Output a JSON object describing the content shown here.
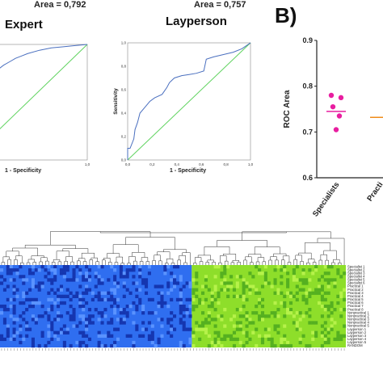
{
  "panel_b_label": "B)",
  "chart_data": [
    {
      "type": "line",
      "title": "Expert",
      "annotation": "Area = 0,792",
      "xlabel": "1 - Specificity",
      "ylabel": "",
      "xlim": [
        0,
        1
      ],
      "ylim": [
        0,
        1
      ],
      "x_ticks": [
        "1,0"
      ],
      "series": [
        {
          "x": [
            0.0,
            0.02,
            0.05,
            0.1,
            0.18,
            0.25,
            0.3,
            0.35,
            0.4,
            0.45,
            0.5,
            0.6,
            0.7,
            0.8,
            0.9,
            1.0
          ],
          "y": [
            0.0,
            0.6,
            0.65,
            0.7,
            0.75,
            0.78,
            0.82,
            0.85,
            0.88,
            0.9,
            0.92,
            0.95,
            0.97,
            0.98,
            0.99,
            1.0
          ]
        },
        {
          "x": [
            0,
            1
          ],
          "y": [
            0,
            1
          ]
        }
      ]
    },
    {
      "type": "line",
      "title": "Layperson",
      "annotation": "Area = 0,757",
      "xlabel": "1 - Specificity",
      "ylabel": "Sensitivity",
      "xlim": [
        0,
        1
      ],
      "ylim": [
        0,
        1
      ],
      "x_ticks": [
        "0,0",
        "0,2",
        "0,4",
        "0,6",
        "0,8",
        "1,0"
      ],
      "y_ticks": [
        "0,0",
        "0,2",
        "0,4",
        "0,6",
        "0,8",
        "1,0"
      ],
      "series": [
        {
          "x": [
            0.0,
            0.0,
            0.02,
            0.05,
            0.06,
            0.08,
            0.1,
            0.14,
            0.18,
            0.22,
            0.28,
            0.32,
            0.34,
            0.38,
            0.44,
            0.5,
            0.56,
            0.62,
            0.64,
            0.7,
            0.78,
            0.86,
            0.93,
            1.0
          ],
          "y": [
            0.0,
            0.1,
            0.1,
            0.18,
            0.26,
            0.32,
            0.4,
            0.45,
            0.5,
            0.53,
            0.56,
            0.62,
            0.66,
            0.7,
            0.72,
            0.73,
            0.74,
            0.76,
            0.86,
            0.88,
            0.9,
            0.92,
            0.95,
            1.0
          ]
        },
        {
          "x": [
            0,
            1
          ],
          "y": [
            0,
            1
          ]
        }
      ]
    },
    {
      "type": "scatter",
      "ylabel": "ROC Area",
      "ylim": [
        0.6,
        0.9
      ],
      "y_ticks": [
        "0.6",
        "0.7",
        "0.8",
        "0.9"
      ],
      "categories": [
        "Specialists",
        "Practi"
      ],
      "series": [
        {
          "name": "Specialists",
          "values": [
            0.78,
            0.775,
            0.755,
            0.735,
            0.705
          ],
          "mean": 0.745
        },
        {
          "name": "Practi",
          "values": [],
          "mean": 0.732
        }
      ]
    },
    {
      "type": "heatmap",
      "row_labels": [
        "Specialist 1",
        "Specialist 2",
        "Specialist 3",
        "Specialist 4",
        "Specialist 5",
        "Specialist 6",
        "Practical 1",
        "Practical 2",
        "Practical 3",
        "Practical 4",
        "Practical 5",
        "Practical 6",
        "Practical 7",
        "Practical 8",
        "Nonpractical 1",
        "Nonpractical 2",
        "Nonpractical 3",
        "Nonpractical 4",
        "Nonpractical 5",
        "Layperson 1",
        "Layperson 2",
        "Layperson 3",
        "Layperson 4",
        "Layperson 5",
        "RANDOM"
      ],
      "colors": {
        "left_base": "#2f6ef0",
        "left_dark": "#1536b0",
        "left_light": "#5a93ff",
        "right_base": "#8ede2a",
        "right_dark": "#55b020",
        "right_light": "#b6f24a"
      }
    }
  ]
}
